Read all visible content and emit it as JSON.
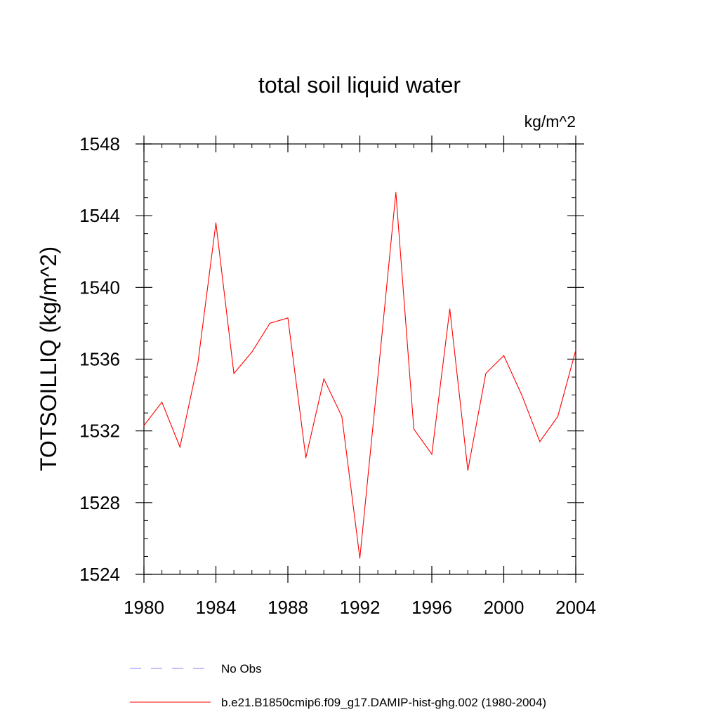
{
  "chart_data": {
    "type": "line",
    "title": "total soil liquid water",
    "units_label": "kg/m^2",
    "ylabel": "TOTSOILLIQ  (kg/m^2)",
    "xlabel": "",
    "xlim": [
      1980,
      2004
    ],
    "ylim": [
      1524,
      1548
    ],
    "x_ticks": [
      1980,
      1984,
      1988,
      1992,
      1996,
      2000,
      2004
    ],
    "y_ticks": [
      1524,
      1528,
      1532,
      1536,
      1540,
      1544,
      1548
    ],
    "x_minor_step": 1,
    "y_minor_step": 1,
    "grid": false,
    "x": [
      1980,
      1981,
      1982,
      1983,
      1984,
      1985,
      1986,
      1987,
      1988,
      1989,
      1990,
      1991,
      1992,
      1993,
      1994,
      1995,
      1996,
      1997,
      1998,
      1999,
      2000,
      2001,
      2002,
      2003,
      2004
    ],
    "series": [
      {
        "name": "b.e21.B1850cmip6.f09_g17.DAMIP-hist-ghg.002 (1980-2004)",
        "color": "#ff0000",
        "style": "solid",
        "values": [
          1532.3,
          1533.6,
          1531.1,
          1535.8,
          1543.6,
          1535.2,
          1536.4,
          1538.0,
          1538.3,
          1530.5,
          1534.9,
          1532.8,
          1524.9,
          1535.0,
          1545.3,
          1532.1,
          1530.7,
          1538.8,
          1529.8,
          1535.2,
          1536.2,
          1534.0,
          1531.4,
          1532.8,
          1536.5
        ]
      }
    ],
    "legend": [
      {
        "label": "No Obs",
        "color": "#8080ff",
        "style": "dashed"
      },
      {
        "label": "b.e21.B1850cmip6.f09_g17.DAMIP-hist-ghg.002 (1980-2004)",
        "color": "#ff0000",
        "style": "solid"
      }
    ]
  }
}
